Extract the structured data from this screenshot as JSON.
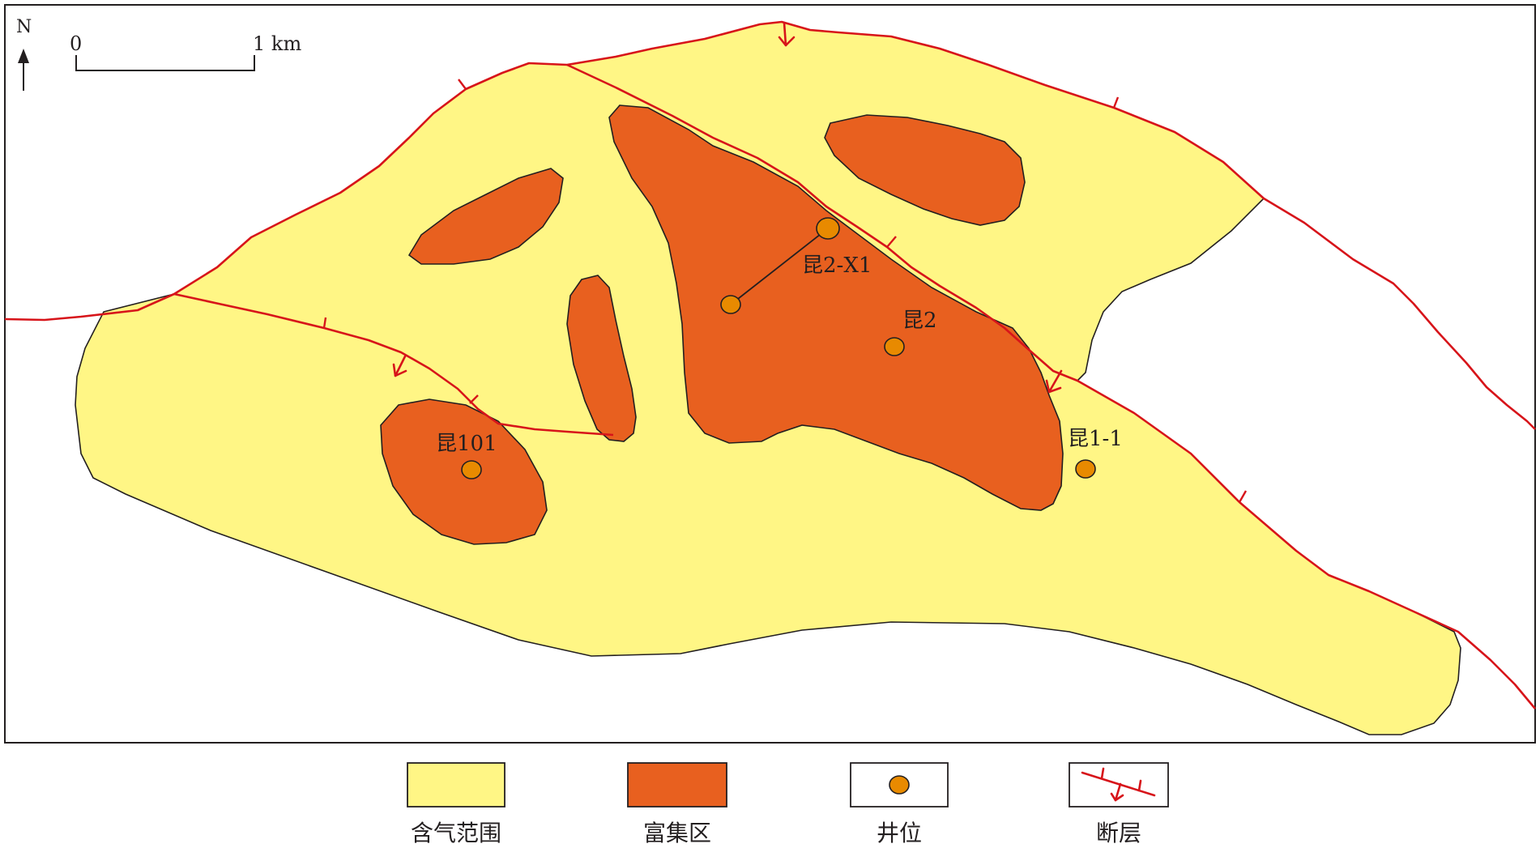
{
  "north_arrow": {
    "label": "N"
  },
  "scale_bar": {
    "start_label": "0",
    "end_label": "1 km"
  },
  "wells": [
    {
      "name": "昆2-X1"
    },
    {
      "name": "昆2"
    },
    {
      "name": "昆1-1"
    },
    {
      "name": "昆101"
    }
  ],
  "legend": [
    {
      "label": "含气范围",
      "color": "#fff685",
      "icon": "yellow-fill-swatch"
    },
    {
      "label": "富集区",
      "color": "#e8601f",
      "icon": "orange-fill-swatch"
    },
    {
      "label": "井位",
      "color": "#e88a00",
      "icon": "well-dot"
    },
    {
      "label": "断层",
      "color": "#d7141a",
      "icon": "fault-line-symbol"
    }
  ],
  "colors": {
    "gas_area": "#fff685",
    "enrichment_zone": "#e8601f",
    "well": "#e88a00",
    "fault": "#d7141a",
    "outline": "#231f20"
  }
}
